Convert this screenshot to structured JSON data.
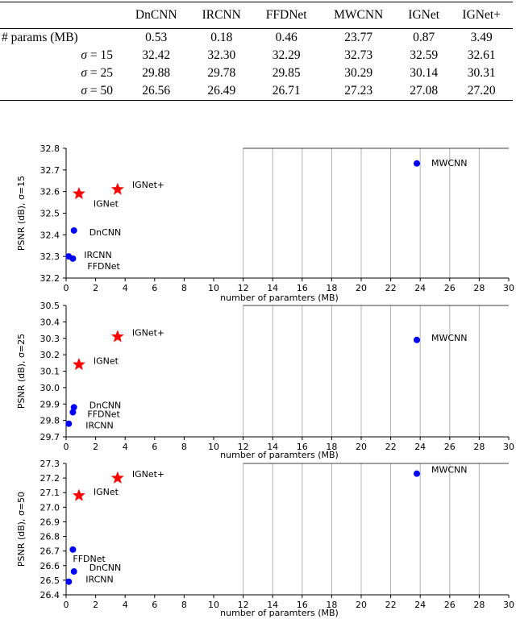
{
  "table": {
    "columns": [
      "",
      "DnCNN",
      "IRCNN",
      "FFDNet",
      "MWCNN",
      "IGNet",
      "IGNet+"
    ],
    "rows": [
      {
        "label": "# params (MB)",
        "sigma": "",
        "values": [
          "0.53",
          "0.18",
          "0.46",
          "23.77",
          "0.87",
          "3.49"
        ]
      },
      {
        "label": "σ",
        "sigma": " = 15",
        "values": [
          "32.42",
          "32.30",
          "32.29",
          "32.73",
          "32.59",
          "32.61"
        ]
      },
      {
        "label": "σ",
        "sigma": " = 25",
        "values": [
          "29.88",
          "29.78",
          "29.85",
          "30.29",
          "30.14",
          "30.31"
        ]
      },
      {
        "label": "σ",
        "sigma": " = 50",
        "values": [
          "26.56",
          "26.49",
          "26.71",
          "27.23",
          "27.08",
          "27.20"
        ]
      }
    ]
  },
  "colors": {
    "circle": "#0000ff",
    "star": "#ff0000",
    "grid": "#b0b0b0"
  },
  "chart_data": [
    {
      "type": "scatter",
      "xlabel": "number of paramters (MB)",
      "ylabel": "PSNR (dB), σ=15",
      "xlim": [
        0,
        30
      ],
      "ylim": [
        32.2,
        32.8
      ],
      "xticks": [
        0,
        2,
        4,
        6,
        8,
        10,
        12,
        14,
        16,
        18,
        20,
        22,
        24,
        26,
        28,
        30
      ],
      "yticks": [
        32.2,
        32.3,
        32.4,
        32.5,
        32.6,
        32.7,
        32.8
      ],
      "grid": "vertical, x >= 12",
      "points": [
        {
          "name": "DnCNN",
          "x": 0.53,
          "y": 32.42,
          "marker": "circle"
        },
        {
          "name": "IRCNN",
          "x": 0.18,
          "y": 32.3,
          "marker": "circle"
        },
        {
          "name": "FFDNet",
          "x": 0.46,
          "y": 32.29,
          "marker": "circle"
        },
        {
          "name": "MWCNN",
          "x": 23.77,
          "y": 32.73,
          "marker": "circle"
        },
        {
          "name": "IGNet",
          "x": 0.87,
          "y": 32.59,
          "marker": "star"
        },
        {
          "name": "IGNet+",
          "x": 3.49,
          "y": 32.61,
          "marker": "star"
        }
      ]
    },
    {
      "type": "scatter",
      "xlabel": "number of paramters (MB)",
      "ylabel": "PSNR (dB), σ=25",
      "xlim": [
        0,
        30
      ],
      "ylim": [
        29.7,
        30.5
      ],
      "xticks": [
        0,
        2,
        4,
        6,
        8,
        10,
        12,
        14,
        16,
        18,
        20,
        22,
        24,
        26,
        28,
        30
      ],
      "yticks": [
        29.7,
        29.8,
        29.9,
        30.0,
        30.1,
        30.2,
        30.3,
        30.4,
        30.5
      ],
      "grid": "vertical, x >= 12",
      "points": [
        {
          "name": "DnCNN",
          "x": 0.53,
          "y": 29.88,
          "marker": "circle"
        },
        {
          "name": "IRCNN",
          "x": 0.18,
          "y": 29.78,
          "marker": "circle"
        },
        {
          "name": "FFDNet",
          "x": 0.46,
          "y": 29.85,
          "marker": "circle"
        },
        {
          "name": "MWCNN",
          "x": 23.77,
          "y": 30.29,
          "marker": "circle"
        },
        {
          "name": "IGNet",
          "x": 0.87,
          "y": 30.14,
          "marker": "star"
        },
        {
          "name": "IGNet+",
          "x": 3.49,
          "y": 30.31,
          "marker": "star"
        }
      ]
    },
    {
      "type": "scatter",
      "xlabel": "number of paramters (MB)",
      "ylabel": "PSNR (dB), σ=50",
      "xlim": [
        0,
        30
      ],
      "ylim": [
        26.4,
        27.3
      ],
      "xticks": [
        0,
        2,
        4,
        6,
        8,
        10,
        12,
        14,
        16,
        18,
        20,
        22,
        24,
        26,
        28,
        30
      ],
      "yticks": [
        26.4,
        26.5,
        26.6,
        26.7,
        26.8,
        26.9,
        27.0,
        27.1,
        27.2,
        27.3
      ],
      "grid": "vertical, x >= 12",
      "points": [
        {
          "name": "DnCNN",
          "x": 0.53,
          "y": 26.56,
          "marker": "circle"
        },
        {
          "name": "IRCNN",
          "x": 0.18,
          "y": 26.49,
          "marker": "circle"
        },
        {
          "name": "FFDNet",
          "x": 0.46,
          "y": 26.71,
          "marker": "circle"
        },
        {
          "name": "MWCNN",
          "x": 23.77,
          "y": 27.23,
          "marker": "circle"
        },
        {
          "name": "IGNet",
          "x": 0.87,
          "y": 27.08,
          "marker": "star"
        },
        {
          "name": "IGNet+",
          "x": 3.49,
          "y": 27.2,
          "marker": "star"
        }
      ]
    }
  ]
}
